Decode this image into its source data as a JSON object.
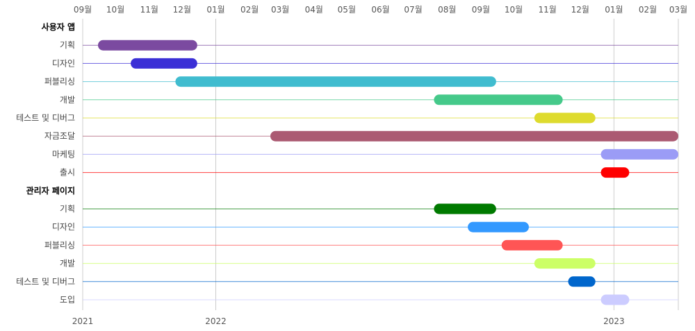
{
  "chart_data": {
    "type": "gantt",
    "x_range": [
      "2021-09",
      "2023-03"
    ],
    "month_ticks": [
      "09월",
      "10월",
      "11월",
      "12월",
      "01월",
      "02월",
      "03월",
      "04월",
      "05월",
      "06월",
      "07월",
      "08월",
      "09월",
      "10월",
      "11월",
      "12월",
      "01월",
      "02월",
      "03월"
    ],
    "year_ticks": [
      {
        "label": "2021",
        "date": "2021-09"
      },
      {
        "label": "2022",
        "date": "2022-01"
      },
      {
        "label": "2023",
        "date": "2023-01"
      }
    ],
    "groups": [
      {
        "name": "사용자 앱",
        "tasks": [
          {
            "name": "기획",
            "start": "2021-09-15",
            "end": "2021-12-15",
            "color": "#7b4aa0"
          },
          {
            "name": "디자인",
            "start": "2021-10-15",
            "end": "2021-12-15",
            "color": "#3b2fd6"
          },
          {
            "name": "퍼블리싱",
            "start": "2021-11-25",
            "end": "2022-09-15",
            "color": "#40bccf"
          },
          {
            "name": "개발",
            "start": "2022-07-20",
            "end": "2022-11-15",
            "color": "#45c98a"
          },
          {
            "name": "테스트 및 디버그",
            "start": "2022-10-20",
            "end": "2022-12-15",
            "color": "#dedb2e"
          },
          {
            "name": "자금조달",
            "start": "2022-02-20",
            "end": "2023-03-01",
            "color": "#ab5a72"
          },
          {
            "name": "마케팅",
            "start": "2022-12-20",
            "end": "2023-03-01",
            "color": "#9b9cf6"
          },
          {
            "name": "출시",
            "start": "2022-12-20",
            "end": "2023-01-15",
            "color": "#ff0000"
          }
        ]
      },
      {
        "name": "관리자 페이지",
        "tasks": [
          {
            "name": "기획",
            "start": "2022-07-20",
            "end": "2022-09-15",
            "color": "#007a00"
          },
          {
            "name": "디자인",
            "start": "2022-08-20",
            "end": "2022-10-15",
            "color": "#3399ff"
          },
          {
            "name": "퍼블리싱",
            "start": "2022-09-20",
            "end": "2022-11-15",
            "color": "#ff5555"
          },
          {
            "name": "개발",
            "start": "2022-10-20",
            "end": "2022-12-15",
            "color": "#ccff66"
          },
          {
            "name": "테스트 및 디버그",
            "start": "2022-11-20",
            "end": "2022-12-15",
            "color": "#0066cc"
          },
          {
            "name": "도입",
            "start": "2022-12-20",
            "end": "2023-01-15",
            "color": "#ccccff"
          }
        ]
      }
    ]
  }
}
